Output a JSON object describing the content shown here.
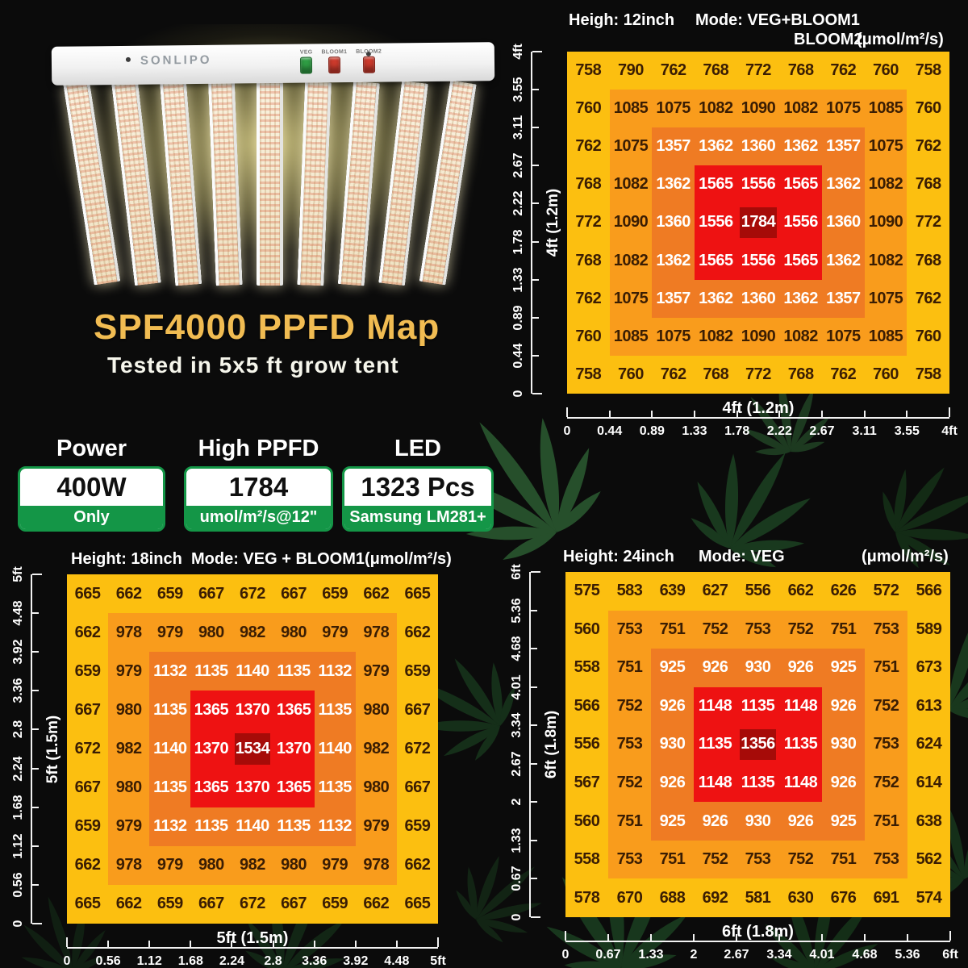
{
  "page": {
    "title": "SPF4000 PPFD Map",
    "subtitle": "Tested in 5x5 ft grow tent"
  },
  "fixture": {
    "brand": "SONLIPO",
    "switches": [
      {
        "label": "VEG",
        "color": "#2f9e44"
      },
      {
        "label": "BLOOM1",
        "color": "#cd3a2c"
      },
      {
        "label": "BLOOM2",
        "color": "#cd3a2c"
      }
    ]
  },
  "badges": [
    {
      "title": "Power",
      "value": "400W",
      "note": "Only"
    },
    {
      "title": "High PPFD",
      "value": "1784",
      "note": "umol/m²/s@12\""
    },
    {
      "title": "LED",
      "value": "1323 Pcs",
      "note": "Samsung LM281+"
    }
  ],
  "colors": {
    "badge_green": "#149647",
    "title_gold": "#f1bc52",
    "ring_gold": "#fcbf10",
    "ring_orange": "#f99c1c",
    "ring_dark_orange": "#ef7b23",
    "ring_red": "#ee1212",
    "center_dark_red": "#a60b08"
  },
  "chart_data": [
    {
      "type": "heatmap",
      "id": "12inch",
      "height_label": "Heigh: 12inch",
      "mode_label": "Mode: VEG+BLOOM1",
      "mode_label2": "BLOOM2",
      "unit": "(μmol/m²/s)",
      "x_axis_title": "4ft (1.2m)",
      "y_axis_title": "4ft (1.2m)",
      "x_ticks": [
        "0",
        "0.44",
        "0.89",
        "1.33",
        "1.78",
        "2.22",
        "2.67",
        "3.11",
        "3.55",
        "4ft"
      ],
      "y_ticks": [
        "0",
        "0.44",
        "0.89",
        "1.33",
        "1.78",
        "2.22",
        "2.67",
        "3.11",
        "3.55",
        "4ft"
      ],
      "values": [
        [
          758,
          790,
          762,
          768,
          772,
          768,
          762,
          760,
          758
        ],
        [
          760,
          1085,
          1075,
          1082,
          1090,
          1082,
          1075,
          1085,
          760
        ],
        [
          762,
          1075,
          1357,
          1362,
          1360,
          1362,
          1357,
          1075,
          762
        ],
        [
          768,
          1082,
          1362,
          1565,
          1556,
          1565,
          1362,
          1082,
          768
        ],
        [
          772,
          1090,
          1360,
          1556,
          1784,
          1556,
          1360,
          1090,
          772
        ],
        [
          768,
          1082,
          1362,
          1565,
          1556,
          1565,
          1362,
          1082,
          768
        ],
        [
          762,
          1075,
          1357,
          1362,
          1360,
          1362,
          1357,
          1075,
          762
        ],
        [
          760,
          1085,
          1075,
          1082,
          1090,
          1082,
          1075,
          1085,
          760
        ],
        [
          758,
          760,
          762,
          768,
          772,
          768,
          762,
          760,
          758
        ]
      ]
    },
    {
      "type": "heatmap",
      "id": "18inch",
      "height_label": "Height: 18inch",
      "mode_label": "Mode: VEG + BLOOM1",
      "unit": "(μmol/m²/s)",
      "x_axis_title": "5ft (1.5m)",
      "y_axis_title": "5ft (1.5m)",
      "x_ticks": [
        "0",
        "0.56",
        "1.12",
        "1.68",
        "2.24",
        "2.8",
        "3.36",
        "3.92",
        "4.48",
        "5ft"
      ],
      "y_ticks": [
        "0",
        "0.56",
        "1.12",
        "1.68",
        "2.24",
        "2.8",
        "3.36",
        "3.92",
        "4.48",
        "5ft"
      ],
      "values": [
        [
          665,
          662,
          659,
          667,
          672,
          667,
          659,
          662,
          665
        ],
        [
          662,
          978,
          979,
          980,
          982,
          980,
          979,
          978,
          662
        ],
        [
          659,
          979,
          1132,
          1135,
          1140,
          1135,
          1132,
          979,
          659
        ],
        [
          667,
          980,
          1135,
          1365,
          1370,
          1365,
          1135,
          980,
          667
        ],
        [
          672,
          982,
          1140,
          1370,
          1534,
          1370,
          1140,
          982,
          672
        ],
        [
          667,
          980,
          1135,
          1365,
          1370,
          1365,
          1135,
          980,
          667
        ],
        [
          659,
          979,
          1132,
          1135,
          1140,
          1135,
          1132,
          979,
          659
        ],
        [
          662,
          978,
          979,
          980,
          982,
          980,
          979,
          978,
          662
        ],
        [
          665,
          662,
          659,
          667,
          672,
          667,
          659,
          662,
          665
        ]
      ]
    },
    {
      "type": "heatmap",
      "id": "24inch",
      "height_label": "Height: 24inch",
      "mode_label": "Mode: VEG",
      "unit": "(μmol/m²/s)",
      "x_axis_title": "6ft (1.8m)",
      "y_axis_title": "6ft (1.8m)",
      "x_ticks": [
        "0",
        "0.67",
        "1.33",
        "2",
        "2.67",
        "3.34",
        "4.01",
        "4.68",
        "5.36",
        "6ft"
      ],
      "y_ticks": [
        "0",
        "0.67",
        "1.33",
        "2",
        "2.67",
        "3.34",
        "4.01",
        "4.68",
        "5.36",
        "6ft"
      ],
      "values": [
        [
          575,
          583,
          639,
          627,
          556,
          662,
          626,
          572,
          566
        ],
        [
          560,
          753,
          751,
          752,
          753,
          752,
          751,
          753,
          589
        ],
        [
          558,
          751,
          925,
          926,
          930,
          926,
          925,
          751,
          673
        ],
        [
          566,
          752,
          926,
          1148,
          1135,
          1148,
          926,
          752,
          613
        ],
        [
          556,
          753,
          930,
          1135,
          1356,
          1135,
          930,
          753,
          624
        ],
        [
          567,
          752,
          926,
          1148,
          1135,
          1148,
          926,
          752,
          614
        ],
        [
          560,
          751,
          925,
          926,
          930,
          926,
          925,
          751,
          638
        ],
        [
          558,
          753,
          751,
          752,
          753,
          752,
          751,
          753,
          562
        ],
        [
          578,
          670,
          688,
          692,
          581,
          630,
          676,
          691,
          574
        ]
      ]
    }
  ]
}
